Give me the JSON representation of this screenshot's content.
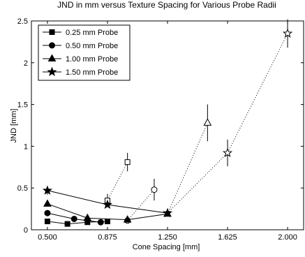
{
  "chart_data": {
    "type": "line",
    "title": "JND in mm versus Texture Spacing for Various Probe Radii",
    "xlabel": "Cone Spacing [mm]",
    "ylabel": "JND [mm]",
    "xlim": [
      0.4,
      2.1
    ],
    "ylim": [
      0,
      2.5
    ],
    "x_ticks": [
      0.5,
      0.875,
      1.25,
      1.625,
      2.0
    ],
    "x_tick_labels": [
      "0.500",
      "0.875",
      "1.250",
      "1.625",
      "2.000"
    ],
    "y_ticks": [
      0,
      0.5,
      1,
      1.5,
      2,
      2.5
    ],
    "y_tick_labels": [
      "0",
      "0.5",
      "1",
      "1.5",
      "2",
      "2.5"
    ],
    "grid": false,
    "legend_position": "top-left",
    "series": [
      {
        "name": "0.25 mm Probe",
        "marker": "square",
        "solid": [
          {
            "x": 0.5,
            "y": 0.1,
            "err": 0
          },
          {
            "x": 0.625,
            "y": 0.07,
            "err": 0
          },
          {
            "x": 0.75,
            "y": 0.09,
            "err": 0
          },
          {
            "x": 0.875,
            "y": 0.1,
            "err": 0
          }
        ],
        "dotted": [
          {
            "x": 0.875,
            "y": 0.35,
            "err": 0.08
          },
          {
            "x": 1.0,
            "y": 0.81,
            "err": 0.11
          }
        ]
      },
      {
        "name": "0.50 mm Probe",
        "marker": "circle",
        "solid": [
          {
            "x": 0.5,
            "y": 0.2,
            "err": 0
          },
          {
            "x": 0.667,
            "y": 0.13,
            "err": 0
          },
          {
            "x": 0.833,
            "y": 0.09,
            "err": 0
          }
        ],
        "dotted": [
          {
            "x": 1.0,
            "y": 0.11,
            "err": 0
          },
          {
            "x": 1.167,
            "y": 0.48,
            "err": 0.13
          }
        ]
      },
      {
        "name": "1.00 mm Probe",
        "marker": "triangle",
        "solid": [
          {
            "x": 0.5,
            "y": 0.31,
            "err": 0
          },
          {
            "x": 0.75,
            "y": 0.14,
            "err": 0
          },
          {
            "x": 1.0,
            "y": 0.12,
            "err": 0
          },
          {
            "x": 1.25,
            "y": 0.19,
            "err": 0
          }
        ],
        "dotted": [
          {
            "x": 1.25,
            "y": 0.19,
            "err": 0
          },
          {
            "x": 1.5,
            "y": 1.28,
            "err": 0.22
          }
        ]
      },
      {
        "name": "1.50 mm Probe",
        "marker": "star",
        "solid": [
          {
            "x": 0.5,
            "y": 0.47,
            "err": 0.05
          },
          {
            "x": 0.875,
            "y": 0.3,
            "err": 0
          },
          {
            "x": 1.25,
            "y": 0.2,
            "err": 0
          }
        ],
        "dotted": [
          {
            "x": 1.25,
            "y": 0.2,
            "err": 0
          },
          {
            "x": 1.625,
            "y": 0.92,
            "err": 0.16
          },
          {
            "x": 2.0,
            "y": 2.35,
            "err": 0.17
          }
        ]
      }
    ]
  }
}
